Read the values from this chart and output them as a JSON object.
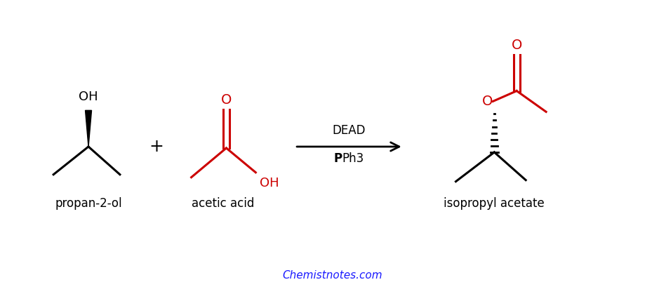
{
  "background_color": "#ffffff",
  "text_color_black": "#000000",
  "text_color_red": "#cc0000",
  "text_color_blue": "#1a1aff",
  "label_propan2ol": "propan-2-ol",
  "label_acetic_acid": "acetic acid",
  "label_isopropyl_acetate": "isopropyl acetate",
  "label_dead": "DEAD",
  "label_pph3": "PPh3",
  "label_website": "Chemistnotes.com",
  "label_plus": "+",
  "label_OH": "OH",
  "label_O_carbonyl": "O",
  "label_OH2": "OH",
  "label_O_ester": "O"
}
